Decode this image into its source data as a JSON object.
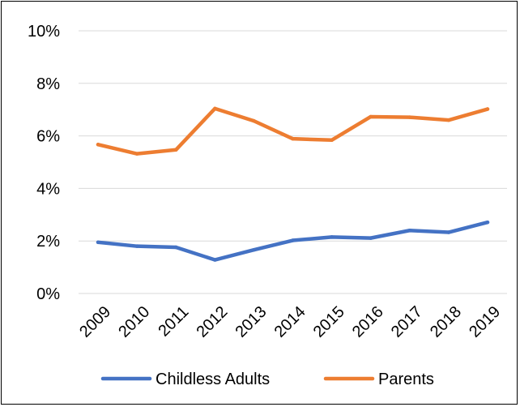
{
  "chart_data": {
    "type": "line",
    "title": "",
    "xlabel": "",
    "ylabel": "",
    "categories": [
      "2009",
      "2010",
      "2011",
      "2012",
      "2013",
      "2014",
      "2015",
      "2016",
      "2017",
      "2018",
      "2019"
    ],
    "ylim": [
      0,
      10
    ],
    "yticks": [
      0,
      2,
      4,
      6,
      8,
      10
    ],
    "ytick_labels": [
      "0%",
      "2%",
      "4%",
      "6%",
      "8%",
      "10%"
    ],
    "grid": true,
    "legend_position": "bottom",
    "series": [
      {
        "name": "Childless Adults",
        "color": "#4472C4",
        "values": [
          1.95,
          1.8,
          1.76,
          1.28,
          1.66,
          2.02,
          2.15,
          2.11,
          2.4,
          2.33,
          2.71
        ]
      },
      {
        "name": "Parents",
        "color": "#ED7D31",
        "values": [
          5.67,
          5.32,
          5.47,
          7.04,
          6.57,
          5.89,
          5.84,
          6.73,
          6.71,
          6.6,
          7.02
        ]
      }
    ]
  }
}
